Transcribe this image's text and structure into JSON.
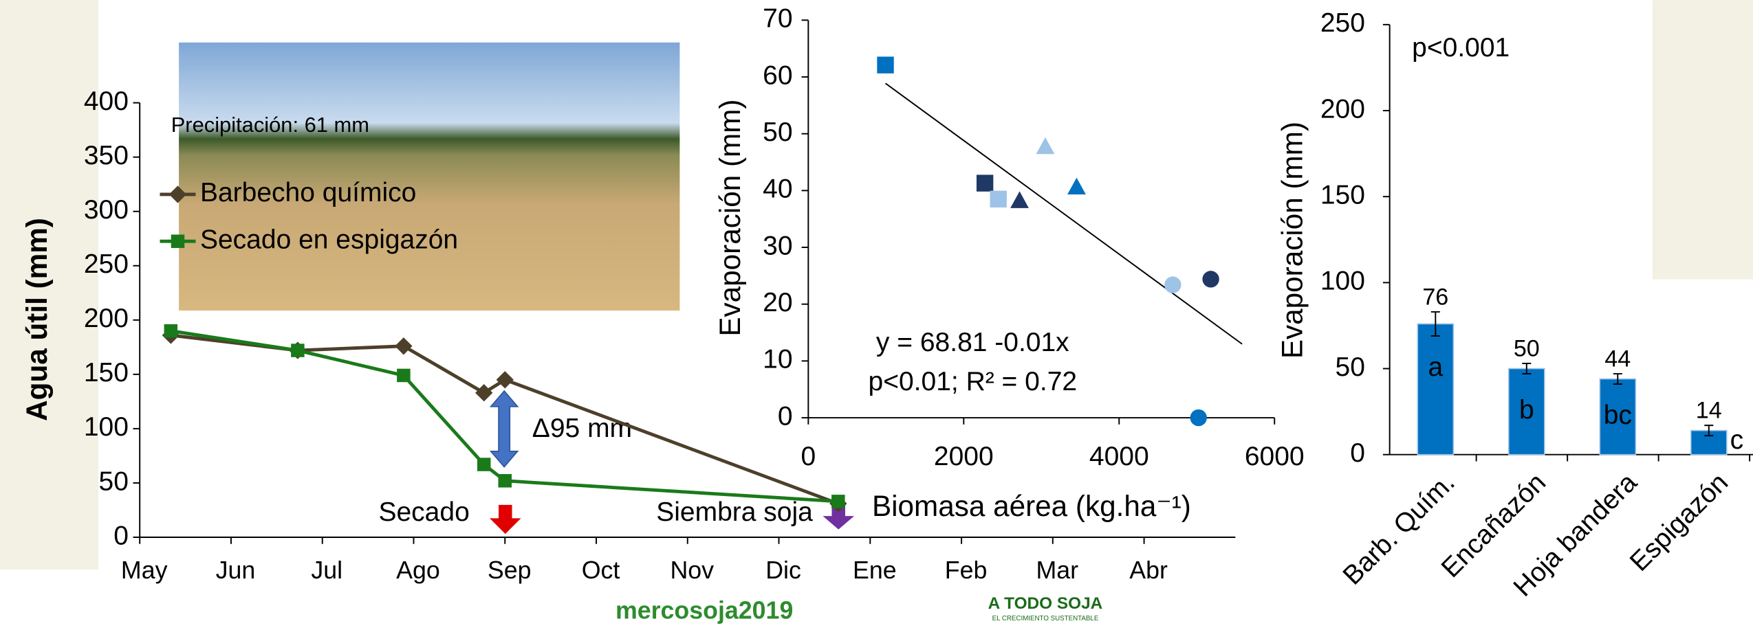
{
  "chart_data": [
    {
      "type": "line",
      "ylabel": "Agua útil (mm)",
      "xlim": [
        0,
        12
      ],
      "xticks": [
        {
          "value": 0,
          "label": "May"
        },
        {
          "value": 1,
          "label": "Jun"
        },
        {
          "value": 2,
          "label": "Jul"
        },
        {
          "value": 3,
          "label": "Ago"
        },
        {
          "value": 4,
          "label": "Sep"
        },
        {
          "value": 5,
          "label": "Oct"
        },
        {
          "value": 6,
          "label": "Nov"
        },
        {
          "value": 7,
          "label": "Dic"
        },
        {
          "value": 8,
          "label": "Ene"
        },
        {
          "value": 9,
          "label": "Feb"
        },
        {
          "value": 10,
          "label": "Mar"
        },
        {
          "value": 11,
          "label": "Abr"
        }
      ],
      "ylim": [
        0,
        400
      ],
      "yticks": [
        0,
        50,
        100,
        150,
        200,
        250,
        300,
        350,
        400
      ],
      "series": [
        {
          "name": "Barbecho químico",
          "color": "#4d3f2a",
          "marker": "diamond",
          "x": [
            0.34,
            1.73,
            2.89,
            3.77,
            4.0,
            7.65
          ],
          "values": [
            186,
            172,
            176,
            133,
            145,
            31
          ]
        },
        {
          "name": "Secado en espigazón",
          "color": "#1a7a1a",
          "marker": "square",
          "x": [
            0.34,
            1.73,
            2.89,
            3.77,
            4.0,
            7.65
          ],
          "values": [
            190,
            172,
            149,
            67,
            52,
            33
          ]
        }
      ],
      "annotations": {
        "photo_caption": "Precipitación: 61 mm",
        "difference": "Δ95 mm",
        "event_1": "Secado",
        "event_2": "Siembra soja"
      }
    },
    {
      "type": "scatter",
      "ylabel": "Evaporación (mm)",
      "xlabel": "Biomasa aérea (kg.ha⁻¹)",
      "xlim": [
        0,
        6000
      ],
      "xticks": [
        0,
        2000,
        4000,
        6000
      ],
      "ylim": [
        0,
        70
      ],
      "yticks": [
        0,
        10,
        20,
        30,
        40,
        50,
        60,
        70
      ],
      "x": [
        993,
        2273,
        2446,
        2719,
        3050,
        3453,
        4691,
        5180,
        5022
      ],
      "values": [
        62.1,
        41.3,
        38.5,
        38.1,
        47.6,
        40.5,
        23.4,
        24.4,
        0
      ],
      "colors": [
        "#0070c0",
        "#1f3864",
        "#9dc3e6",
        "#1f3864",
        "#9dc3e6",
        "#0070c0",
        "#9dc3e6",
        "#1f3864",
        "#0070c0"
      ],
      "markers": [
        "square",
        "square",
        "square",
        "triangle",
        "triangle",
        "triangle",
        "circle",
        "circle",
        "circle"
      ],
      "trendline": {
        "intercept": 68.81,
        "slope": -0.01,
        "x": [
          993,
          5583
        ]
      },
      "annotations": {
        "equation": "y = 68.81 -0.01x",
        "stats": "p<0.01; R² = 0.72"
      }
    },
    {
      "type": "bar",
      "ylabel": "Evaporación (mm)",
      "color": "#0070c0",
      "categories": [
        "Barb. Quím.",
        "Encañazón",
        "Hoja bandera",
        "Espigazón"
      ],
      "values": [
        76,
        50,
        44,
        14
      ],
      "errors": [
        7,
        3,
        3,
        3
      ],
      "letters": [
        "a",
        "b",
        "bc",
        "c"
      ],
      "ylim": [
        0,
        250
      ],
      "yticks": [
        0,
        50,
        100,
        150,
        200,
        250
      ],
      "annotations": {
        "significance": "p<0.001"
      }
    }
  ],
  "footer": {
    "logo_left": "mercosoja2019",
    "logo_right": "A TODO SOJA",
    "logo_right_sub": "EL CRECIMIENTO SUSTENTABLE"
  }
}
